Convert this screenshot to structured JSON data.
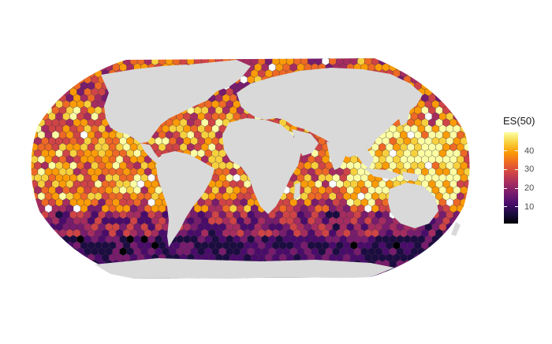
{
  "legend": {
    "title": "ES(50)",
    "ticks": [
      10,
      20,
      30,
      40
    ],
    "range": [
      1,
      50
    ],
    "gradient": [
      "#000004",
      "#1b0c41",
      "#4a0c6b",
      "#781c6d",
      "#a52c60",
      "#cf4446",
      "#ed6925",
      "#fb9b06",
      "#f7d13d",
      "#fcffa4"
    ]
  },
  "colors": {
    "land": "#d9d9d9",
    "ocean_low": "#000004",
    "ocean_high": "#fcffa4",
    "no_data": "#ffffff"
  },
  "map": {
    "projection": "Robinson",
    "cell_shape": "hexagon",
    "variable": "ES(50)"
  }
}
